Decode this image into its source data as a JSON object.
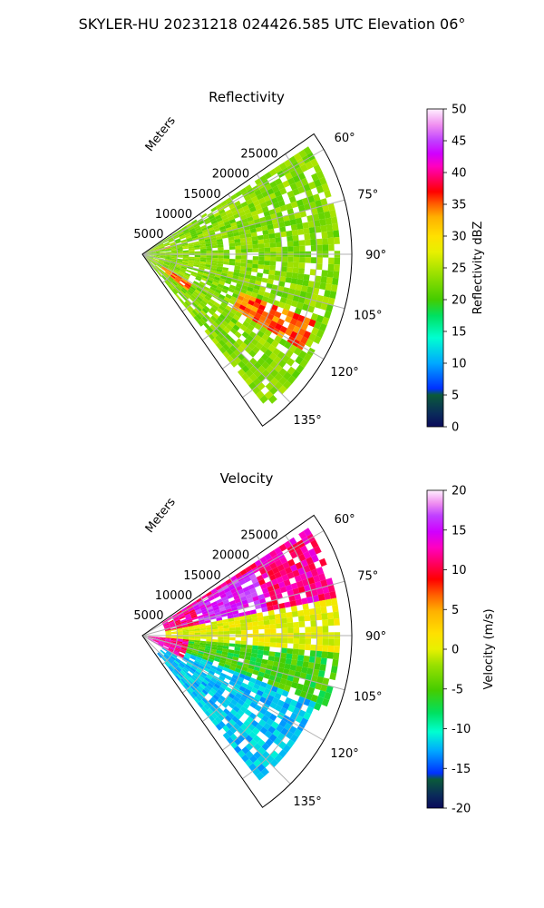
{
  "suptitle": "SKYLER-HU  20231218  024426.585 UTC Elevation 06°",
  "chart_data": [
    {
      "type": "heatmap",
      "subtype": "polar-sector (PPI)",
      "title": "Reflectivity",
      "radial_label": "Meters",
      "r_ticks": [
        5000,
        10000,
        15000,
        20000,
        25000
      ],
      "r_max": 30000,
      "theta_range_deg": [
        55,
        145
      ],
      "theta_ticks": [
        60,
        75,
        90,
        105,
        120,
        135
      ],
      "grid": true,
      "colorbar": {
        "label": "Reflectivity dBZ",
        "range": [
          0,
          50
        ],
        "ticks": [
          0,
          5,
          10,
          15,
          20,
          25,
          30,
          35,
          40,
          45,
          50
        ]
      },
      "features": [
        {
          "theta_range": [
            58,
            140
          ],
          "r_range": [
            0,
            28000
          ],
          "value_typical": 23
        },
        {
          "theta_range": [
            112,
            120
          ],
          "r_range": [
            15000,
            27000
          ],
          "value_typical": 35
        },
        {
          "theta_range": [
            122,
            128
          ],
          "r_range": [
            3000,
            8000
          ],
          "value_typical": 35
        },
        {
          "theta_range": [
            73,
            76
          ],
          "r_range": [
            0,
            4000
          ],
          "value_typical": 33
        }
      ]
    },
    {
      "type": "heatmap",
      "subtype": "polar-sector (PPI)",
      "title": "Velocity",
      "radial_label": "Meters",
      "r_ticks": [
        5000,
        10000,
        15000,
        20000,
        25000
      ],
      "r_max": 30000,
      "theta_range_deg": [
        55,
        145
      ],
      "theta_ticks": [
        60,
        75,
        90,
        105,
        120,
        135
      ],
      "grid": true,
      "colorbar": {
        "label": "Velocity (m/s)",
        "range": [
          -20,
          20
        ],
        "ticks": [
          -20,
          -15,
          -10,
          -5,
          0,
          5,
          10,
          15,
          20
        ]
      },
      "features": [
        {
          "theta_range": [
            58,
            80
          ],
          "r_range": [
            3000,
            28000
          ],
          "value_typical": 12
        },
        {
          "theta_range": [
            60,
            78
          ],
          "r_range": [
            8000,
            18000
          ],
          "value_typical": 15
        },
        {
          "theta_range": [
            80,
            95
          ],
          "r_range": [
            3000,
            28000
          ],
          "value_typical": 2
        },
        {
          "theta_range": [
            95,
            112
          ],
          "r_range": [
            3000,
            28000
          ],
          "value_typical": -4
        },
        {
          "theta_range": [
            112,
            140
          ],
          "r_range": [
            3000,
            27000
          ],
          "value_typical": -11
        },
        {
          "theta_range": [
            96,
            120
          ],
          "r_range": [
            1000,
            7000
          ],
          "value_typical": 12
        }
      ]
    }
  ]
}
